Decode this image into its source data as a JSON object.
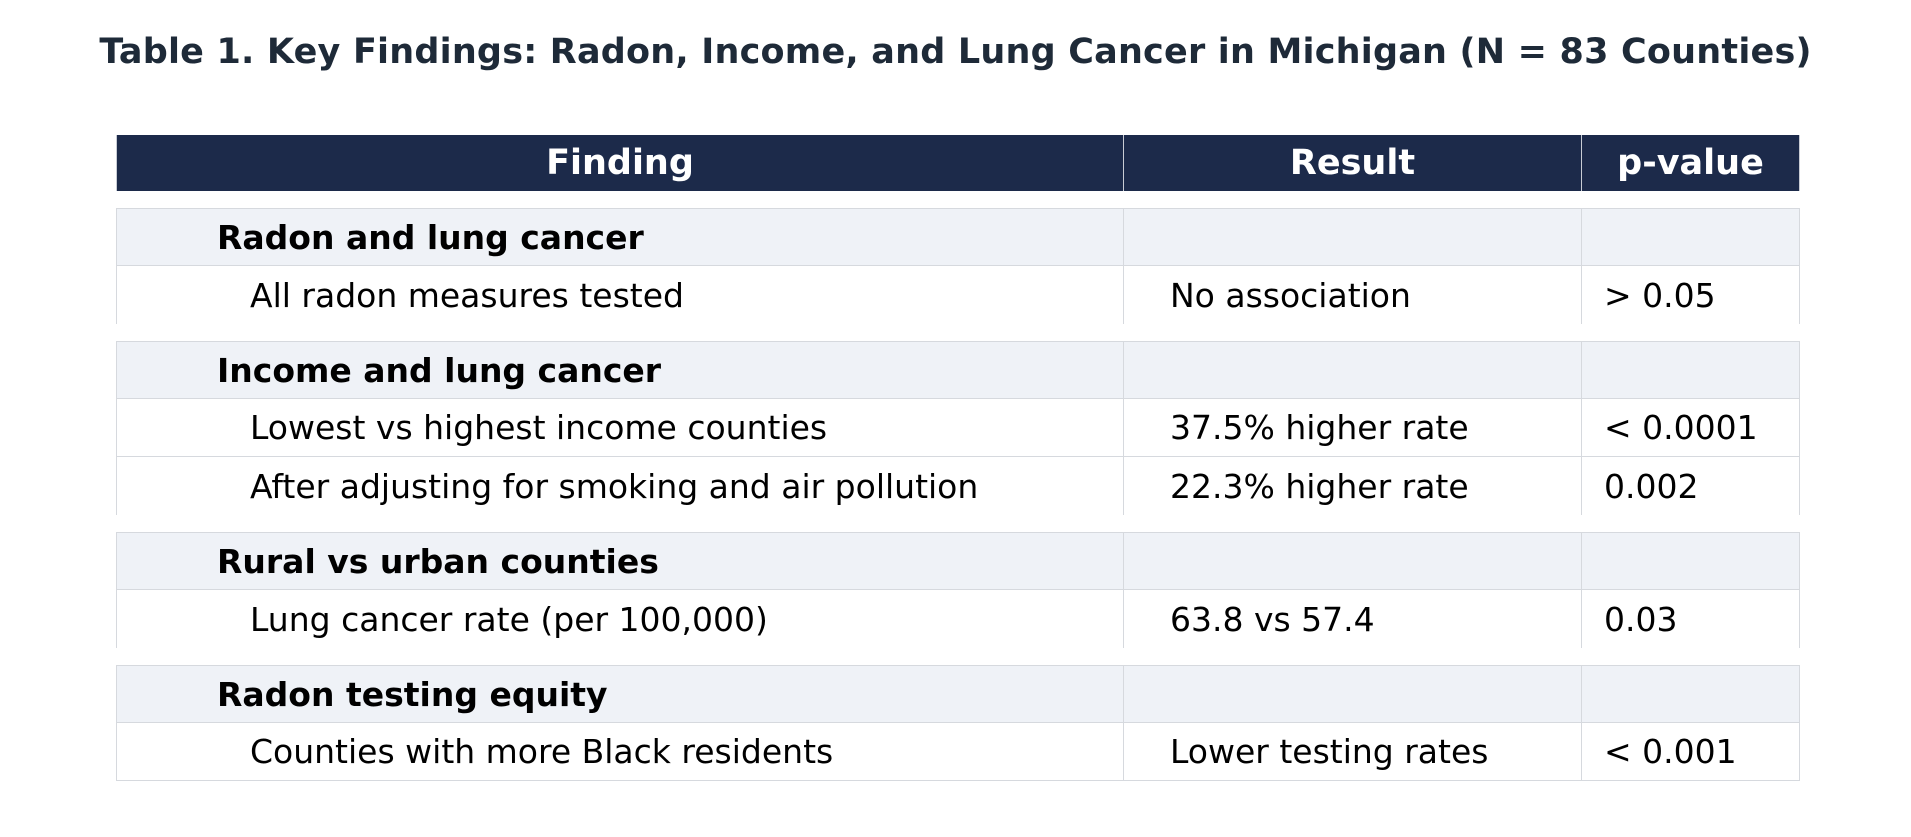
{
  "title": "Table 1. Key Findings: Radon, Income, and Lung Cancer in Michigan (N = 83 Counties)",
  "columns": [
    "Finding",
    "Result",
    "p-value"
  ],
  "groups": [
    {
      "section": "Radon and lung cancer",
      "rows": [
        {
          "finding": "All radon measures tested",
          "result": "No association",
          "p": "> 0.05"
        }
      ]
    },
    {
      "section": "Income and lung cancer",
      "rows": [
        {
          "finding": "Lowest vs highest income counties",
          "result": "37.5% higher rate",
          "p": "< 0.0001"
        },
        {
          "finding": "After adjusting for smoking and air pollution",
          "result": "22.3% higher rate",
          "p": "0.002"
        }
      ]
    },
    {
      "section": "Rural vs urban counties",
      "rows": [
        {
          "finding": "Lung cancer rate (per 100,000)",
          "result": "63.8 vs 57.4",
          "p": "0.03"
        }
      ]
    },
    {
      "section": "Radon testing equity",
      "rows": [
        {
          "finding": "Counties with more Black residents",
          "result": "Lower testing rates",
          "p": "< 0.001"
        }
      ]
    }
  ]
}
